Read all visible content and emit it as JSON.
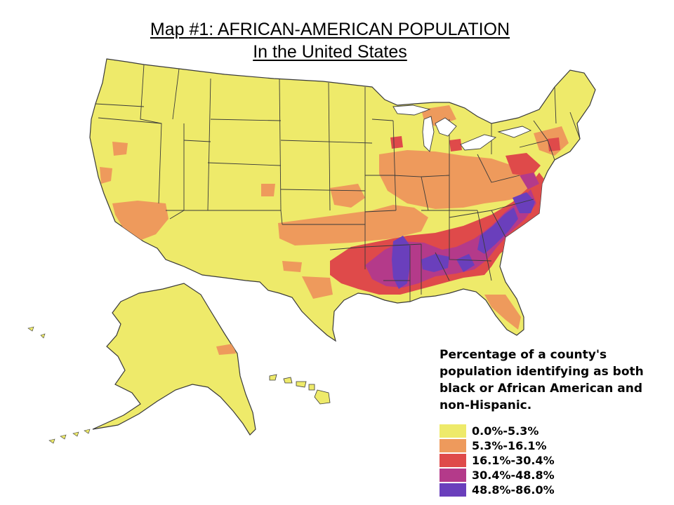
{
  "title": {
    "line1": "Map #1: AFRICAN-AMERICAN POPULATION",
    "line2": "In the United States"
  },
  "map": {
    "colors": {
      "land": "#eeea6a",
      "border": "#3a3a3a",
      "water": "#ffffff"
    }
  },
  "legend": {
    "title_lines": [
      "Percentage of a county's",
      "population identifying as both",
      "black or African American and",
      "non-Hispanic."
    ],
    "classes": [
      {
        "label": "0.0%-5.3%",
        "color": "#eeea6a"
      },
      {
        "label": "5.3%-16.1%",
        "color": "#ee9a5c"
      },
      {
        "label": "16.1%-30.4%",
        "color": "#df4a4a"
      },
      {
        "label": "30.4%-48.8%",
        "color": "#b43a8a"
      },
      {
        "label": "48.8%-86.0%",
        "color": "#6a3fbc"
      }
    ]
  }
}
